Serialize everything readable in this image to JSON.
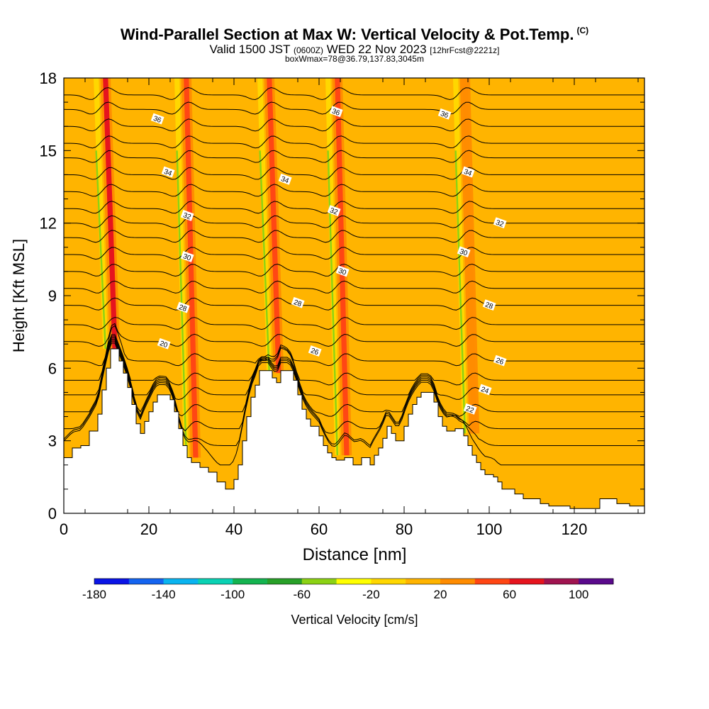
{
  "header": {
    "title": "Wind-Parallel Section at Max W: Vertical Velocity & Pot.Temp.",
    "copyright": "(C)",
    "valid_prefix": "Valid 1500 JST",
    "valid_utc": "(0600Z)",
    "valid_date": "WED 22 Nov 2023",
    "forecast": "[12hrFcst@2221z]",
    "box_info": "boxWmax=78@36.79,137.83,3045m"
  },
  "chart_data": {
    "type": "heatmap",
    "xlabel": "Distance [nm]",
    "ylabel": "Height [Kft MSL]",
    "xlim": [
      0,
      136.5
    ],
    "ylim": [
      0,
      18
    ],
    "x_ticks": [
      "0",
      "20",
      "40",
      "60",
      "80",
      "100",
      "120"
    ],
    "x_tick_values": [
      0,
      20,
      40,
      60,
      80,
      100,
      120
    ],
    "y_ticks": [
      "0",
      "3",
      "6",
      "9",
      "12",
      "15",
      "18"
    ],
    "y_tick_values": [
      0,
      3,
      6,
      9,
      12,
      15,
      18
    ],
    "colorbar": {
      "label": "Vertical Velocity [cm/s]",
      "range": [
        -180,
        120
      ],
      "step": 20,
      "tick_labels": [
        "-180",
        "-140",
        "-100",
        "-60",
        "-20",
        "20",
        "60",
        "100"
      ],
      "tick_values": [
        -180,
        -140,
        -100,
        -60,
        -20,
        20,
        60,
        100
      ],
      "colors": [
        "#0a14e6",
        "#1464f0",
        "#0ab4f0",
        "#0ad2b4",
        "#14b450",
        "#28a028",
        "#8cd214",
        "#ffff00",
        "#ffd700",
        "#ffb400",
        "#ff8c00",
        "#ff4614",
        "#e6141e",
        "#a01450",
        "#5a0a8c"
      ]
    },
    "terrain_profile_kft": [
      [
        0,
        2.3
      ],
      [
        2,
        2.7
      ],
      [
        4,
        2.8
      ],
      [
        6,
        3.4
      ],
      [
        8,
        4.1
      ],
      [
        9,
        5.1
      ],
      [
        10,
        6.0
      ],
      [
        11,
        6.8
      ],
      [
        12,
        6.8
      ],
      [
        13,
        6.3
      ],
      [
        14,
        5.8
      ],
      [
        15,
        5.2
      ],
      [
        16,
        4.5
      ],
      [
        17,
        3.7
      ],
      [
        18,
        3.3
      ],
      [
        19,
        3.8
      ],
      [
        20,
        4.2
      ],
      [
        21,
        4.6
      ],
      [
        22,
        4.9
      ],
      [
        24,
        4.9
      ],
      [
        25,
        4.7
      ],
      [
        26,
        4.2
      ],
      [
        27,
        3.5
      ],
      [
        28,
        2.8
      ],
      [
        29,
        2.3
      ],
      [
        30,
        2.1
      ],
      [
        32,
        1.9
      ],
      [
        34,
        1.7
      ],
      [
        36,
        1.3
      ],
      [
        38,
        1.0
      ],
      [
        40,
        1.4
      ],
      [
        41,
        2.0
      ],
      [
        42,
        3.0
      ],
      [
        43,
        4.0
      ],
      [
        44,
        4.8
      ],
      [
        45,
        5.3
      ],
      [
        46,
        5.9
      ],
      [
        48,
        5.9
      ],
      [
        49,
        5.6
      ],
      [
        50,
        5.4
      ],
      [
        51,
        5.9
      ],
      [
        53,
        5.9
      ],
      [
        54,
        5.5
      ],
      [
        55,
        4.9
      ],
      [
        56,
        4.3
      ],
      [
        57,
        3.9
      ],
      [
        58,
        3.6
      ],
      [
        60,
        3.2
      ],
      [
        61,
        2.8
      ],
      [
        62,
        2.5
      ],
      [
        63,
        2.3
      ],
      [
        64,
        2.2
      ],
      [
        66,
        2.3
      ],
      [
        68,
        2.0
      ],
      [
        70,
        2.3
      ],
      [
        72,
        2.0
      ],
      [
        73,
        2.4
      ],
      [
        74,
        2.7
      ],
      [
        75,
        3.1
      ],
      [
        76,
        3.6
      ],
      [
        77,
        3.3
      ],
      [
        78,
        3.0
      ],
      [
        79,
        3.0
      ],
      [
        80,
        3.6
      ],
      [
        81,
        4.1
      ],
      [
        82,
        4.5
      ],
      [
        83,
        4.8
      ],
      [
        84,
        5.0
      ],
      [
        86,
        5.0
      ],
      [
        87,
        4.6
      ],
      [
        88,
        4.0
      ],
      [
        89,
        3.6
      ],
      [
        90,
        3.4
      ],
      [
        92,
        3.5
      ],
      [
        94,
        3.2
      ],
      [
        95,
        2.8
      ],
      [
        96,
        2.4
      ],
      [
        97,
        2.1
      ],
      [
        98,
        1.8
      ],
      [
        99,
        1.6
      ],
      [
        101,
        1.5
      ],
      [
        102,
        1.3
      ],
      [
        103,
        1.0
      ],
      [
        105,
        1.0
      ],
      [
        106,
        0.8
      ],
      [
        108,
        0.6
      ],
      [
        111,
        0.6
      ],
      [
        112,
        0.4
      ],
      [
        114,
        0.3
      ],
      [
        118,
        0.3
      ],
      [
        119,
        0.2
      ],
      [
        125,
        0.2
      ],
      [
        126,
        0.6
      ],
      [
        129,
        0.6
      ],
      [
        130,
        0.4
      ],
      [
        133,
        0.3
      ],
      [
        136.5,
        0.3
      ]
    ],
    "updraft_bands": [
      {
        "x": 12.0,
        "base": 6.8,
        "value": 60,
        "downdraft_side": "left"
      },
      {
        "x": 31.0,
        "base": 2.3,
        "value": 40,
        "downdraft_side": "left"
      },
      {
        "x": 50.5,
        "base": 5.8,
        "value": 40,
        "downdraft_side": "left"
      },
      {
        "x": 66.5,
        "base": 2.4,
        "value": 40,
        "downdraft_side": "left"
      },
      {
        "x": 96.5,
        "base": 3.3,
        "value": 30,
        "downdraft_side": "left"
      }
    ],
    "isentrope_labels": [
      {
        "text": "20",
        "x": 23.5,
        "y": 7.0
      },
      {
        "text": "22",
        "x": 95.5,
        "y": 4.3
      },
      {
        "text": "24",
        "x": 99.0,
        "y": 5.1
      },
      {
        "text": "26",
        "x": 59.0,
        "y": 6.7
      },
      {
        "text": "26",
        "x": 102.5,
        "y": 6.3
      },
      {
        "text": "28",
        "x": 28.0,
        "y": 8.5
      },
      {
        "text": "28",
        "x": 55.0,
        "y": 8.7
      },
      {
        "text": "28",
        "x": 100.0,
        "y": 8.6
      },
      {
        "text": "30",
        "x": 29.0,
        "y": 10.6
      },
      {
        "text": "30",
        "x": 65.5,
        "y": 10.0
      },
      {
        "text": "30",
        "x": 94.0,
        "y": 10.8
      },
      {
        "text": "32",
        "x": 29.0,
        "y": 12.3
      },
      {
        "text": "32",
        "x": 63.5,
        "y": 12.5
      },
      {
        "text": "32",
        "x": 102.5,
        "y": 12.0
      },
      {
        "text": "34",
        "x": 24.5,
        "y": 14.1
      },
      {
        "text": "34",
        "x": 52.0,
        "y": 13.8
      },
      {
        "text": "34",
        "x": 95.0,
        "y": 14.1
      },
      {
        "text": "36",
        "x": 22.0,
        "y": 16.3
      },
      {
        "text": "36",
        "x": 64.0,
        "y": 16.6
      },
      {
        "text": "36",
        "x": 89.5,
        "y": 16.5
      }
    ],
    "isentrope_levels_kft": [
      2.0,
      2.8,
      3.5,
      4.2,
      4.9,
      5.5,
      6.3,
      7.1,
      7.8,
      8.6,
      9.3,
      10.0,
      10.7,
      11.4,
      12.0,
      12.6,
      13.3,
      14.0,
      14.7,
      15.3,
      16.0,
      16.7,
      17.3
    ]
  }
}
